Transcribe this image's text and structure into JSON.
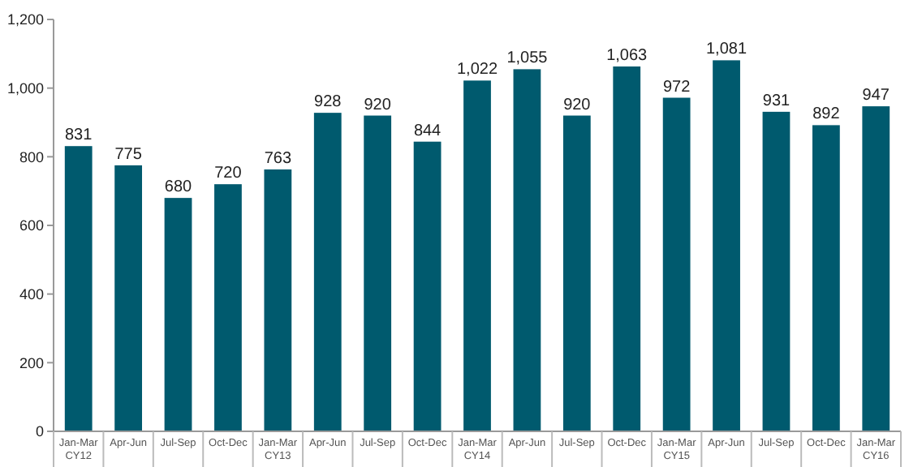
{
  "chart_data": {
    "type": "bar",
    "categories": [
      "Jan-Mar\nCY12",
      "Apr-Jun",
      "Jul-Sep",
      "Oct-Dec",
      "Jan-Mar\nCY13",
      "Apr-Jun",
      "Jul-Sep",
      "Oct-Dec",
      "Jan-Mar\nCY14",
      "Apr-Jun",
      "Jul-Sep",
      "Oct-Dec",
      "Jan-Mar\nCY15",
      "Apr-Jun",
      "Jul-Sep",
      "Oct-Dec",
      "Jan-Mar\nCY16"
    ],
    "values": [
      831,
      775,
      680,
      720,
      763,
      928,
      920,
      844,
      1022,
      1055,
      920,
      1063,
      972,
      1081,
      931,
      892,
      947
    ],
    "value_labels": [
      "831",
      "775",
      "680",
      "720",
      "763",
      "928",
      "920",
      "844",
      "1,022",
      "1,055",
      "920",
      "1,063",
      "972",
      "1,081",
      "931",
      "892",
      "947"
    ],
    "color": "#005a6e",
    "ylim": [
      0,
      1200
    ],
    "yticks": [
      0,
      {
        "value": 200,
        "label": "200"
      },
      {
        "value": 400,
        "label": "400"
      },
      {
        "value": 600,
        "label": "600"
      },
      {
        "value": 800,
        "label": "800"
      },
      {
        "value": 1000,
        "label": "1,000"
      },
      {
        "value": 1200,
        "label": "1,200"
      }
    ],
    "grid": false
  }
}
